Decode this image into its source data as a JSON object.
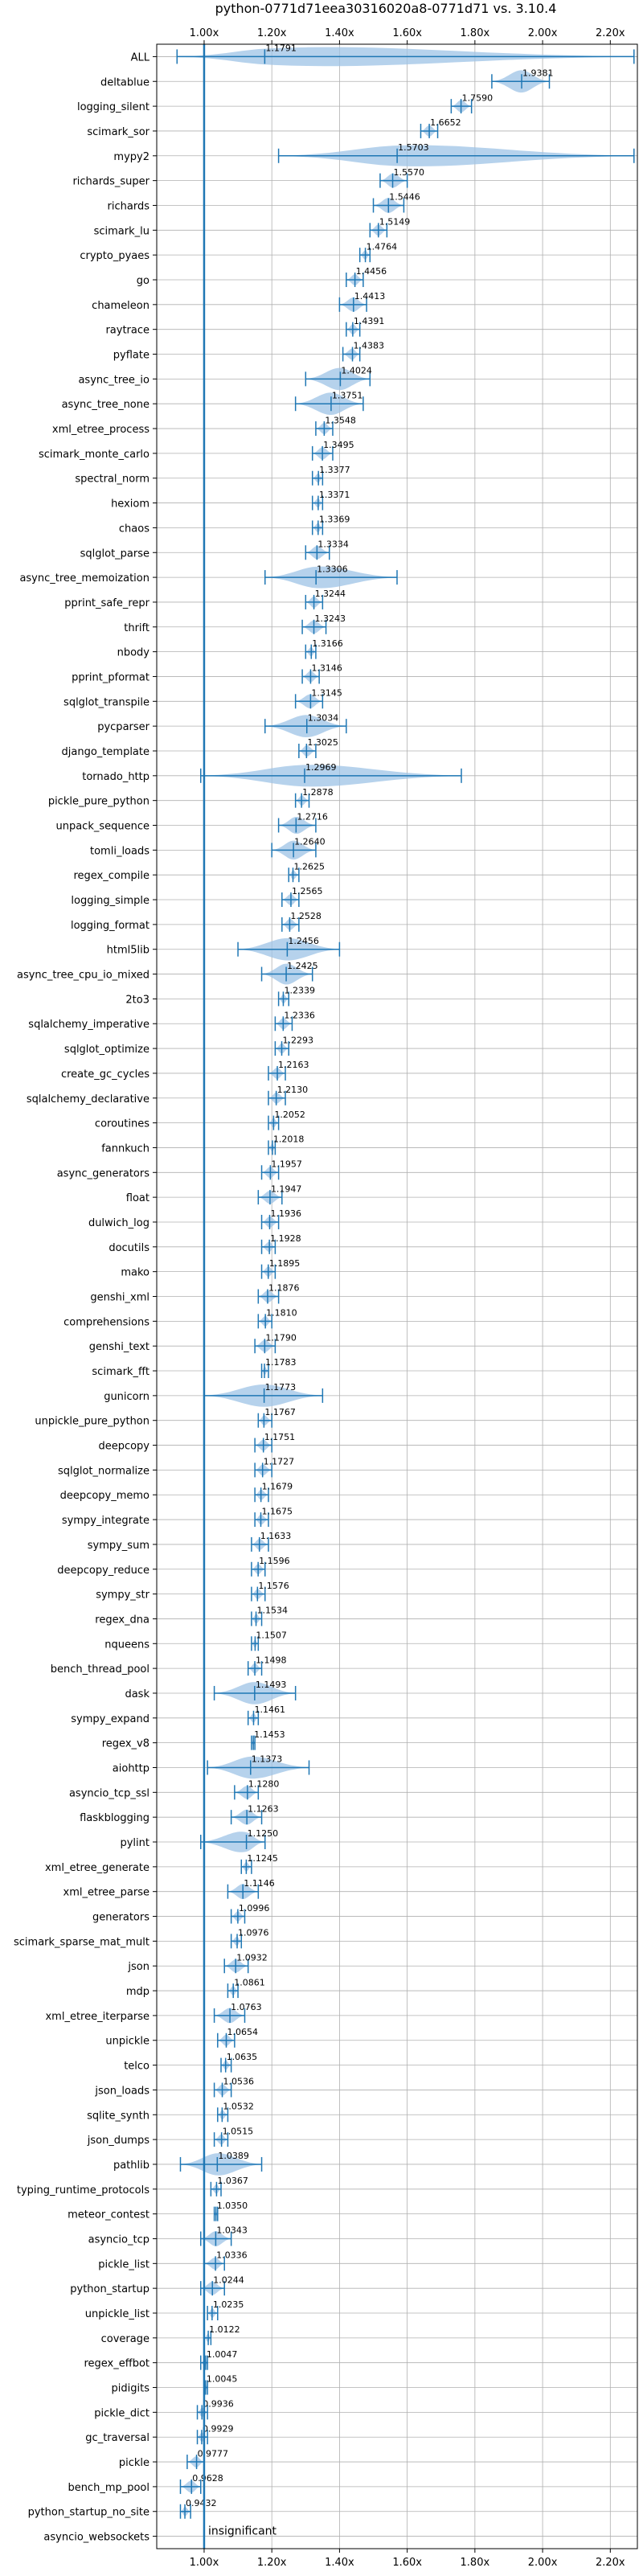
{
  "chart_data": {
    "type": "violin",
    "title": "python-0771d71eea30316020a8-0771d71 vs. 3.10.4",
    "xlabel": "",
    "ylabel": "",
    "xlim": [
      0.86,
      2.28
    ],
    "x_ticks": [
      1.0,
      1.2,
      1.4,
      1.6,
      1.8,
      2.0,
      2.2
    ],
    "x_tick_labels": [
      "1.00x",
      "1.20x",
      "1.40x",
      "1.60x",
      "1.80x",
      "2.00x",
      "2.20x"
    ],
    "reference_line": 1.0,
    "grid": true,
    "annotation": "insignificant",
    "colors": {
      "violin": "#9ec3e6",
      "line": "#1f77b4"
    },
    "benchmarks": [
      {
        "name": "ALL",
        "value": 1.1791,
        "min": 0.92,
        "max": 2.27
      },
      {
        "name": "deltablue",
        "value": 1.9381,
        "min": 1.85,
        "max": 2.02
      },
      {
        "name": "logging_silent",
        "value": 1.759,
        "min": 1.73,
        "max": 1.79
      },
      {
        "name": "scimark_sor",
        "value": 1.6652,
        "min": 1.64,
        "max": 1.69
      },
      {
        "name": "mypy2",
        "value": 1.5703,
        "min": 1.22,
        "max": 2.27
      },
      {
        "name": "richards_super",
        "value": 1.557,
        "min": 1.52,
        "max": 1.6
      },
      {
        "name": "richards",
        "value": 1.5446,
        "min": 1.5,
        "max": 1.59
      },
      {
        "name": "scimark_lu",
        "value": 1.5149,
        "min": 1.49,
        "max": 1.54
      },
      {
        "name": "crypto_pyaes",
        "value": 1.4764,
        "min": 1.46,
        "max": 1.49
      },
      {
        "name": "go",
        "value": 1.4456,
        "min": 1.42,
        "max": 1.47
      },
      {
        "name": "chameleon",
        "value": 1.4413,
        "min": 1.4,
        "max": 1.48
      },
      {
        "name": "raytrace",
        "value": 1.4391,
        "min": 1.42,
        "max": 1.46
      },
      {
        "name": "pyflate",
        "value": 1.4383,
        "min": 1.41,
        "max": 1.46
      },
      {
        "name": "async_tree_io",
        "value": 1.4024,
        "min": 1.3,
        "max": 1.49
      },
      {
        "name": "async_tree_none",
        "value": 1.3751,
        "min": 1.27,
        "max": 1.47
      },
      {
        "name": "xml_etree_process",
        "value": 1.3548,
        "min": 1.33,
        "max": 1.38
      },
      {
        "name": "scimark_monte_carlo",
        "value": 1.3495,
        "min": 1.32,
        "max": 1.38
      },
      {
        "name": "spectral_norm",
        "value": 1.3377,
        "min": 1.32,
        "max": 1.35
      },
      {
        "name": "hexiom",
        "value": 1.3371,
        "min": 1.32,
        "max": 1.35
      },
      {
        "name": "chaos",
        "value": 1.3369,
        "min": 1.32,
        "max": 1.35
      },
      {
        "name": "sqlglot_parse",
        "value": 1.3334,
        "min": 1.3,
        "max": 1.37
      },
      {
        "name": "async_tree_memoization",
        "value": 1.3306,
        "min": 1.18,
        "max": 1.57
      },
      {
        "name": "pprint_safe_repr",
        "value": 1.3244,
        "min": 1.3,
        "max": 1.35
      },
      {
        "name": "thrift",
        "value": 1.3243,
        "min": 1.29,
        "max": 1.36
      },
      {
        "name": "nbody",
        "value": 1.3166,
        "min": 1.3,
        "max": 1.33
      },
      {
        "name": "pprint_pformat",
        "value": 1.3146,
        "min": 1.29,
        "max": 1.34
      },
      {
        "name": "sqlglot_transpile",
        "value": 1.3145,
        "min": 1.27,
        "max": 1.35
      },
      {
        "name": "pycparser",
        "value": 1.3034,
        "min": 1.18,
        "max": 1.42
      },
      {
        "name": "django_template",
        "value": 1.3025,
        "min": 1.28,
        "max": 1.33
      },
      {
        "name": "tornado_http",
        "value": 1.2969,
        "min": 0.99,
        "max": 1.76
      },
      {
        "name": "pickle_pure_python",
        "value": 1.2878,
        "min": 1.27,
        "max": 1.31
      },
      {
        "name": "unpack_sequence",
        "value": 1.2716,
        "min": 1.22,
        "max": 1.33
      },
      {
        "name": "tomli_loads",
        "value": 1.264,
        "min": 1.2,
        "max": 1.33
      },
      {
        "name": "regex_compile",
        "value": 1.2625,
        "min": 1.25,
        "max": 1.28
      },
      {
        "name": "logging_simple",
        "value": 1.2565,
        "min": 1.23,
        "max": 1.28
      },
      {
        "name": "logging_format",
        "value": 1.2528,
        "min": 1.23,
        "max": 1.28
      },
      {
        "name": "html5lib",
        "value": 1.2456,
        "min": 1.1,
        "max": 1.4
      },
      {
        "name": "async_tree_cpu_io_mixed",
        "value": 1.2425,
        "min": 1.17,
        "max": 1.32
      },
      {
        "name": "2to3",
        "value": 1.2339,
        "min": 1.22,
        "max": 1.25
      },
      {
        "name": "sqlalchemy_imperative",
        "value": 1.2336,
        "min": 1.21,
        "max": 1.26
      },
      {
        "name": "sqlglot_optimize",
        "value": 1.2293,
        "min": 1.21,
        "max": 1.25
      },
      {
        "name": "create_gc_cycles",
        "value": 1.2163,
        "min": 1.19,
        "max": 1.24
      },
      {
        "name": "sqlalchemy_declarative",
        "value": 1.213,
        "min": 1.19,
        "max": 1.24
      },
      {
        "name": "coroutines",
        "value": 1.2052,
        "min": 1.19,
        "max": 1.22
      },
      {
        "name": "fannkuch",
        "value": 1.2018,
        "min": 1.19,
        "max": 1.21
      },
      {
        "name": "async_generators",
        "value": 1.1957,
        "min": 1.17,
        "max": 1.22
      },
      {
        "name": "float",
        "value": 1.1947,
        "min": 1.16,
        "max": 1.23
      },
      {
        "name": "dulwich_log",
        "value": 1.1936,
        "min": 1.17,
        "max": 1.22
      },
      {
        "name": "docutils",
        "value": 1.1928,
        "min": 1.17,
        "max": 1.21
      },
      {
        "name": "mako",
        "value": 1.1895,
        "min": 1.17,
        "max": 1.21
      },
      {
        "name": "genshi_xml",
        "value": 1.1876,
        "min": 1.16,
        "max": 1.22
      },
      {
        "name": "comprehensions",
        "value": 1.181,
        "min": 1.16,
        "max": 1.2
      },
      {
        "name": "genshi_text",
        "value": 1.179,
        "min": 1.15,
        "max": 1.21
      },
      {
        "name": "scimark_fft",
        "value": 1.1783,
        "min": 1.17,
        "max": 1.19
      },
      {
        "name": "gunicorn",
        "value": 1.1773,
        "min": 1.0,
        "max": 1.35
      },
      {
        "name": "unpickle_pure_python",
        "value": 1.1767,
        "min": 1.16,
        "max": 1.2
      },
      {
        "name": "deepcopy",
        "value": 1.1751,
        "min": 1.15,
        "max": 1.2
      },
      {
        "name": "sqlglot_normalize",
        "value": 1.1727,
        "min": 1.15,
        "max": 1.2
      },
      {
        "name": "deepcopy_memo",
        "value": 1.1679,
        "min": 1.15,
        "max": 1.19
      },
      {
        "name": "sympy_integrate",
        "value": 1.1675,
        "min": 1.15,
        "max": 1.19
      },
      {
        "name": "sympy_sum",
        "value": 1.1633,
        "min": 1.14,
        "max": 1.19
      },
      {
        "name": "deepcopy_reduce",
        "value": 1.1596,
        "min": 1.14,
        "max": 1.18
      },
      {
        "name": "sympy_str",
        "value": 1.1576,
        "min": 1.14,
        "max": 1.18
      },
      {
        "name": "regex_dna",
        "value": 1.1534,
        "min": 1.14,
        "max": 1.17
      },
      {
        "name": "nqueens",
        "value": 1.1507,
        "min": 1.14,
        "max": 1.16
      },
      {
        "name": "bench_thread_pool",
        "value": 1.1498,
        "min": 1.13,
        "max": 1.17
      },
      {
        "name": "dask",
        "value": 1.1493,
        "min": 1.03,
        "max": 1.27
      },
      {
        "name": "sympy_expand",
        "value": 1.1461,
        "min": 1.13,
        "max": 1.16
      },
      {
        "name": "regex_v8",
        "value": 1.1453,
        "min": 1.14,
        "max": 1.15
      },
      {
        "name": "aiohttp",
        "value": 1.1373,
        "min": 1.01,
        "max": 1.31
      },
      {
        "name": "asyncio_tcp_ssl",
        "value": 1.128,
        "min": 1.09,
        "max": 1.16
      },
      {
        "name": "flaskblogging",
        "value": 1.1263,
        "min": 1.08,
        "max": 1.17
      },
      {
        "name": "pylint",
        "value": 1.125,
        "min": 0.99,
        "max": 1.18
      },
      {
        "name": "xml_etree_generate",
        "value": 1.1245,
        "min": 1.11,
        "max": 1.14
      },
      {
        "name": "xml_etree_parse",
        "value": 1.1146,
        "min": 1.07,
        "max": 1.16
      },
      {
        "name": "generators",
        "value": 1.0996,
        "min": 1.08,
        "max": 1.12
      },
      {
        "name": "scimark_sparse_mat_mult",
        "value": 1.0976,
        "min": 1.08,
        "max": 1.11
      },
      {
        "name": "json",
        "value": 1.0932,
        "min": 1.06,
        "max": 1.13
      },
      {
        "name": "mdp",
        "value": 1.0861,
        "min": 1.07,
        "max": 1.1
      },
      {
        "name": "xml_etree_iterparse",
        "value": 1.0763,
        "min": 1.03,
        "max": 1.12
      },
      {
        "name": "unpickle",
        "value": 1.0654,
        "min": 1.04,
        "max": 1.09
      },
      {
        "name": "telco",
        "value": 1.0635,
        "min": 1.05,
        "max": 1.08
      },
      {
        "name": "json_loads",
        "value": 1.0536,
        "min": 1.03,
        "max": 1.08
      },
      {
        "name": "sqlite_synth",
        "value": 1.0532,
        "min": 1.04,
        "max": 1.07
      },
      {
        "name": "json_dumps",
        "value": 1.0515,
        "min": 1.03,
        "max": 1.07
      },
      {
        "name": "pathlib",
        "value": 1.0389,
        "min": 0.93,
        "max": 1.17
      },
      {
        "name": "typing_runtime_protocols",
        "value": 1.0367,
        "min": 1.02,
        "max": 1.05
      },
      {
        "name": "meteor_contest",
        "value": 1.035,
        "min": 1.03,
        "max": 1.04
      },
      {
        "name": "asyncio_tcp",
        "value": 1.0343,
        "min": 0.99,
        "max": 1.08
      },
      {
        "name": "pickle_list",
        "value": 1.0336,
        "min": 1.0,
        "max": 1.06
      },
      {
        "name": "python_startup",
        "value": 1.0244,
        "min": 0.99,
        "max": 1.06
      },
      {
        "name": "unpickle_list",
        "value": 1.0235,
        "min": 1.01,
        "max": 1.04
      },
      {
        "name": "coverage",
        "value": 1.0122,
        "min": 1.0,
        "max": 1.02
      },
      {
        "name": "regex_effbot",
        "value": 1.0047,
        "min": 0.99,
        "max": 1.01
      },
      {
        "name": "pidigits",
        "value": 1.0045,
        "min": 1.0,
        "max": 1.01
      },
      {
        "name": "pickle_dict",
        "value": 0.9936,
        "min": 0.98,
        "max": 1.01
      },
      {
        "name": "gc_traversal",
        "value": 0.9929,
        "min": 0.98,
        "max": 1.01
      },
      {
        "name": "pickle",
        "value": 0.9777,
        "min": 0.95,
        "max": 1.0
      },
      {
        "name": "bench_mp_pool",
        "value": 0.9628,
        "min": 0.93,
        "max": 0.99
      },
      {
        "name": "python_startup_no_site",
        "value": 0.9432,
        "min": 0.93,
        "max": 0.96
      },
      {
        "name": "asyncio_websockets",
        "value": null,
        "min": null,
        "max": null
      }
    ]
  }
}
